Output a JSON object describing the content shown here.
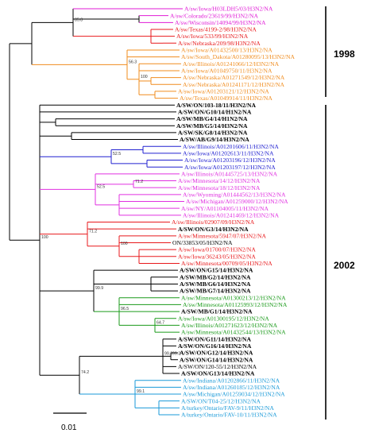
{
  "brackets": [
    {
      "label": "1998",
      "from": 0,
      "to": 11
    },
    {
      "label": "2002",
      "from": 12,
      "to": 78
    }
  ],
  "scale_bar": {
    "label": "0.01"
  },
  "colors": {
    "pink": "#e01bd6",
    "red": "#e8191c",
    "orange": "#f08c1e",
    "black": "#000000",
    "blue": "#2020d0",
    "magenta": "#e030e0",
    "green": "#1a9a1a",
    "cyan": "#1a9ad8"
  },
  "leaves": [
    {
      "label": "A/sw/Iowa/H03LDH5/03/H3N2/NA",
      "color": "pink"
    },
    {
      "label": "A/sw/Colorado/23619/99/H3N2/NA",
      "color": "pink"
    },
    {
      "label": "A/sw/Wisconsin/14094/99/H3N2/NA",
      "color": "pink"
    },
    {
      "label": "A/sw/Texas/4199-2/98/H3N2/NA",
      "color": "red"
    },
    {
      "label": "A/sw/Iowa/533/99/H3N2/NA",
      "color": "red"
    },
    {
      "label": "A/sw/Nebraska/209/98/H3N2/NA",
      "color": "red"
    },
    {
      "label": "A/sw/Iowa/A01432500/13/H3N2/NA",
      "color": "orange"
    },
    {
      "label": "A/sw/South_Dakota/A01280095/13/H3N2/NA",
      "color": "orange"
    },
    {
      "label": "A/sw/Illinois/A01241066/12/H3N2/NA",
      "color": "orange"
    },
    {
      "label": "A/sw/Iowa/A01049750/11/H3N2/NA",
      "color": "orange"
    },
    {
      "label": "A/sw/Nebraska/A01271549/12/H3N2/NA",
      "color": "orange"
    },
    {
      "label": "A/sw/Nebraska/A01241171/12/H3N2/NA",
      "color": "orange"
    },
    {
      "label": "A/sw/Iowa/A01203121/12/H3N2/NA",
      "color": "orange"
    },
    {
      "label": "A/sw/Texas/A01049914/11/H3N2/NA",
      "color": "orange"
    },
    {
      "label": "A/SW/ON/103-18/11/H3N2/NA",
      "color": "black",
      "bold": true
    },
    {
      "label": "A/SW/ON/G10/14/H1N2/NA",
      "color": "black",
      "bold": true
    },
    {
      "label": "A/SW/MB/G4/14/H1N2/NA",
      "color": "black",
      "bold": true
    },
    {
      "label": "A/SW/MB/G5/14/H3N2/NA",
      "color": "black",
      "bold": true
    },
    {
      "label": "A/SW/SK/G8/14/H3N2/NA",
      "color": "black",
      "bold": true
    },
    {
      "label": "A/SW/AB/G9/14/H3N2/NA",
      "color": "black",
      "bold": true
    },
    {
      "label": "A/sw/Illinois/A01201606/11/H3N2/NA",
      "color": "blue"
    },
    {
      "label": "A/sw/Iowa/A01202613/11/H3N2/NA",
      "color": "blue"
    },
    {
      "label": "A/sw/Iowa/A01203196/12/H3N2/NA",
      "color": "blue"
    },
    {
      "label": "A/sw/Iowa/A01203197/12/H3N2/NA",
      "color": "blue"
    },
    {
      "label": "A/sw/Illinois/A01445725/13/H3N2/NA",
      "color": "magenta"
    },
    {
      "label": "A/sw/Minnesota/14/12/H3N2/NA",
      "color": "magenta"
    },
    {
      "label": "A/sw/Minnesota/18/12/H3N2/NA",
      "color": "magenta"
    },
    {
      "label": "A/sw/Wyoming/A01444562/13/H3N2/NA",
      "color": "magenta"
    },
    {
      "label": "A/sw/Michigan/A01259000/12/H3N2/NA",
      "color": "magenta"
    },
    {
      "label": "A/sw/NY/A01104005/11/H3N2/NA",
      "color": "magenta"
    },
    {
      "label": "A/sw/Illinois/A01241469/12/H3N2/NA",
      "color": "magenta"
    },
    {
      "label": "A/sw/Illinois/02907/09/H3N2/NA",
      "color": "red"
    },
    {
      "label": "A/SW/ON/G3/14/H3N2/NA",
      "color": "black",
      "bold": true
    },
    {
      "label": "A/sw/Minnesota/5947/07/H3N2/NA",
      "color": "red"
    },
    {
      "label": "ON/33853/05/H3N2/NA",
      "color": "black"
    },
    {
      "label": "A/sw/Iowa/01700/07/H3N2/NA",
      "color": "red"
    },
    {
      "label": "A/sw/Iowa/36243/05/H3N2/NA",
      "color": "red"
    },
    {
      "label": "A/sw/Minnesota/00709/05/H3N2/NA",
      "color": "red"
    },
    {
      "label": "A/SW/ON/G15/14/H3N2/NA",
      "color": "black",
      "bold": true
    },
    {
      "label": "A/SW/MB/G2/14/H3N2/NA",
      "color": "black",
      "bold": true
    },
    {
      "label": "A/SW/MB/G6/14/H3N2/NA",
      "color": "black",
      "bold": true
    },
    {
      "label": "A/SW/MB/G7/14/H3N2/NA",
      "color": "black",
      "bold": true
    },
    {
      "label": "A/sw/Minnesota/A01300213/12/H3N2/NA",
      "color": "green"
    },
    {
      "label": "A/sw/Minnesota/A01125993/12/H3N2/NA",
      "color": "green"
    },
    {
      "label": "A/SW/MB/G1/14/H3N2/NA",
      "color": "black",
      "bold": true
    },
    {
      "label": "A/sw/Iowa/A01300195/12/H3N2/NA",
      "color": "green"
    },
    {
      "label": "A/sw/Illinois/A01271623/12/H3N2/NA",
      "color": "green"
    },
    {
      "label": "A/sw/Minnesota/A01432544/13/H3N2/NA",
      "color": "green"
    },
    {
      "label": "A/SW/ON/G11/14/H3N2/NA",
      "color": "black",
      "bold": true
    },
    {
      "label": "A/SW/ON/G16/14/H3N2/NA",
      "color": "black",
      "bold": true
    },
    {
      "label": "A/SW/ON/G12/14/H3N2/NA",
      "color": "black",
      "bold": true
    },
    {
      "label": "A/SW/ON/G14/14/H3N2/NA",
      "color": "black",
      "bold": true
    },
    {
      "label": "A/SW/ON/120-55/12/H3N2/NA",
      "color": "black"
    },
    {
      "label": "A/SW/ON/G13/14/H3N2/NA",
      "color": "black",
      "bold": true
    },
    {
      "label": "A/sw/Indiana/A01202866/11/H3N2/NA",
      "color": "cyan"
    },
    {
      "label": "A/sw/Indiana/A01260185/12/H3N2/NA",
      "color": "cyan"
    },
    {
      "label": "A/sw/Michigan/A01259034/12/H3N2/NA",
      "color": "cyan"
    },
    {
      "label": "A/SW/ON/T04-25/12/H3N2/NA",
      "color": "cyan"
    },
    {
      "label": "A/turkey/Ontario/FAV-9/11/H3N2/NA",
      "color": "cyan"
    },
    {
      "label": "A/turkey/Ontario/FAV-10/11/H3N2/NA",
      "color": "cyan"
    }
  ],
  "bootstrap": [
    "85.8",
    "56.3",
    "100",
    "100",
    "52.5",
    "52.5",
    "71.2",
    "71.2",
    "100",
    "99.9",
    "96.5",
    "64.7",
    "74.2",
    "99.3",
    "99.3",
    "99.1",
    "79.6",
    "88.4",
    "88.4",
    "74",
    "79",
    "100"
  ]
}
